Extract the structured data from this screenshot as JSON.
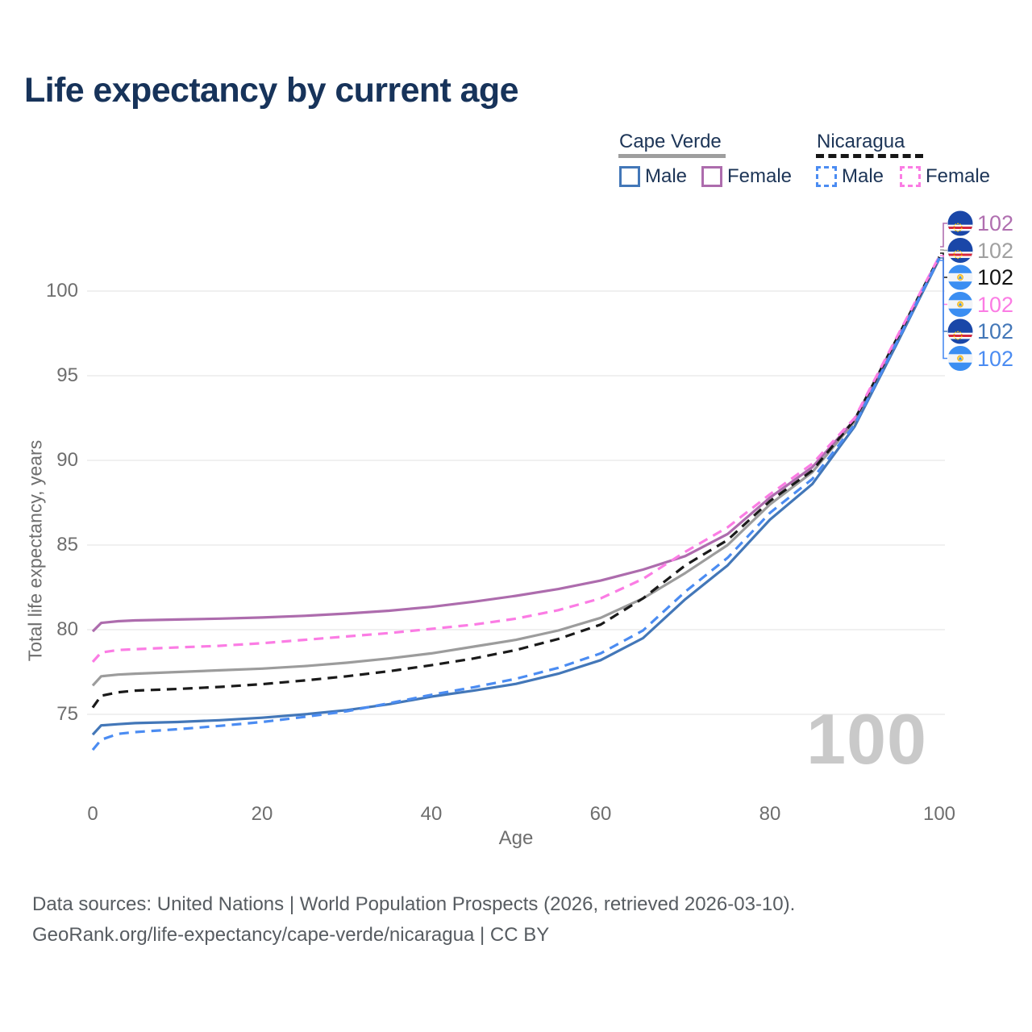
{
  "title": "Life expectancy by current age",
  "legend": {
    "groups": [
      {
        "name": "Cape Verde",
        "underline": "solid",
        "color": "#9e9e9e"
      },
      {
        "name": "Nicaragua",
        "underline": "dashed",
        "color": "#161616"
      }
    ],
    "items": [
      {
        "label": "Male",
        "color": "#4377b8",
        "dash": false
      },
      {
        "label": "Female",
        "color": "#ad6cad",
        "dash": false
      },
      {
        "label": "Male",
        "color": "#4b8cf2",
        "dash": true
      },
      {
        "label": "Female",
        "color": "#fb7ce4",
        "dash": true
      }
    ]
  },
  "watermark": "100",
  "footer": {
    "line1": "Data sources: United Nations | World Population Prospects (2026, retrieved 2026-03-10).",
    "line2": "GeoRank.org/life-expectancy/cape-verde/nicaragua | CC BY"
  },
  "chart_data": {
    "type": "line",
    "title": "Life expectancy by current age",
    "xlabel": "Age",
    "ylabel": "Total life expectancy, years",
    "xlim": [
      0,
      100
    ],
    "ylim": [
      72.5,
      103
    ],
    "xticks": [
      0,
      20,
      40,
      60,
      80,
      100
    ],
    "yticks": [
      75,
      80,
      85,
      90,
      95,
      100
    ],
    "grid": "horizontal-only",
    "legend_position": "top-right",
    "series": [
      {
        "name": "Cape Verde All",
        "country": "Cape Verde",
        "sex": "all",
        "color": "#9c9c9c",
        "dash": false,
        "points": [
          [
            0,
            76.7
          ],
          [
            1,
            77.25
          ],
          [
            3,
            77.35
          ],
          [
            5,
            77.4
          ],
          [
            10,
            77.5
          ],
          [
            15,
            77.6
          ],
          [
            20,
            77.7
          ],
          [
            25,
            77.85
          ],
          [
            30,
            78.05
          ],
          [
            35,
            78.3
          ],
          [
            40,
            78.6
          ],
          [
            45,
            79.0
          ],
          [
            50,
            79.4
          ],
          [
            55,
            79.95
          ],
          [
            60,
            80.7
          ],
          [
            65,
            81.85
          ],
          [
            70,
            83.35
          ],
          [
            75,
            85.0
          ],
          [
            80,
            87.4
          ],
          [
            85,
            89.3
          ],
          [
            90,
            92.3
          ],
          [
            95,
            97.1
          ],
          [
            100,
            101.98
          ]
        ]
      },
      {
        "name": "Cape Verde Male",
        "country": "Cape Verde",
        "sex": "male",
        "color": "#4377b8",
        "dash": false,
        "points": [
          [
            0,
            73.8
          ],
          [
            1,
            74.35
          ],
          [
            3,
            74.42
          ],
          [
            5,
            74.48
          ],
          [
            10,
            74.55
          ],
          [
            15,
            74.65
          ],
          [
            20,
            74.8
          ],
          [
            25,
            75.0
          ],
          [
            30,
            75.25
          ],
          [
            35,
            75.6
          ],
          [
            40,
            76.05
          ],
          [
            45,
            76.4
          ],
          [
            50,
            76.8
          ],
          [
            55,
            77.4
          ],
          [
            60,
            78.2
          ],
          [
            65,
            79.5
          ],
          [
            70,
            81.8
          ],
          [
            75,
            83.8
          ],
          [
            80,
            86.5
          ],
          [
            85,
            88.6
          ],
          [
            90,
            92.0
          ],
          [
            95,
            96.9
          ],
          [
            100,
            101.9
          ]
        ]
      },
      {
        "name": "Cape Verde Female",
        "country": "Cape Verde",
        "sex": "female",
        "color": "#ad6cad",
        "dash": false,
        "points": [
          [
            0,
            79.9
          ],
          [
            1,
            80.4
          ],
          [
            3,
            80.5
          ],
          [
            5,
            80.55
          ],
          [
            10,
            80.6
          ],
          [
            15,
            80.65
          ],
          [
            20,
            80.72
          ],
          [
            25,
            80.82
          ],
          [
            30,
            80.95
          ],
          [
            35,
            81.12
          ],
          [
            40,
            81.35
          ],
          [
            45,
            81.65
          ],
          [
            50,
            82.0
          ],
          [
            55,
            82.4
          ],
          [
            60,
            82.9
          ],
          [
            65,
            83.55
          ],
          [
            70,
            84.35
          ],
          [
            75,
            85.65
          ],
          [
            80,
            87.8
          ],
          [
            85,
            89.6
          ],
          [
            90,
            92.4
          ],
          [
            95,
            97.2
          ],
          [
            100,
            102.0
          ]
        ]
      },
      {
        "name": "Nicaragua All",
        "country": "Nicaragua",
        "sex": "all",
        "color": "#1a1a1a",
        "dash": true,
        "points": [
          [
            0,
            75.4
          ],
          [
            1,
            76.1
          ],
          [
            3,
            76.3
          ],
          [
            5,
            76.4
          ],
          [
            10,
            76.5
          ],
          [
            15,
            76.62
          ],
          [
            20,
            76.78
          ],
          [
            25,
            77.0
          ],
          [
            30,
            77.25
          ],
          [
            35,
            77.55
          ],
          [
            40,
            77.9
          ],
          [
            45,
            78.3
          ],
          [
            50,
            78.8
          ],
          [
            55,
            79.45
          ],
          [
            60,
            80.3
          ],
          [
            65,
            81.85
          ],
          [
            70,
            83.8
          ],
          [
            75,
            85.3
          ],
          [
            80,
            87.6
          ],
          [
            85,
            89.4
          ],
          [
            90,
            92.4
          ],
          [
            95,
            97.2
          ],
          [
            100,
            102.02
          ]
        ]
      },
      {
        "name": "Nicaragua Female",
        "country": "Nicaragua",
        "sex": "female",
        "color": "#fb7ce4",
        "dash": true,
        "points": [
          [
            0,
            78.1
          ],
          [
            1,
            78.65
          ],
          [
            3,
            78.8
          ],
          [
            5,
            78.85
          ],
          [
            10,
            78.95
          ],
          [
            15,
            79.05
          ],
          [
            20,
            79.2
          ],
          [
            25,
            79.4
          ],
          [
            30,
            79.6
          ],
          [
            35,
            79.8
          ],
          [
            40,
            80.05
          ],
          [
            45,
            80.3
          ],
          [
            50,
            80.65
          ],
          [
            55,
            81.15
          ],
          [
            60,
            81.85
          ],
          [
            65,
            83.0
          ],
          [
            70,
            84.6
          ],
          [
            75,
            86.05
          ],
          [
            80,
            88.0
          ],
          [
            85,
            89.8
          ],
          [
            90,
            92.5
          ],
          [
            95,
            97.3
          ],
          [
            100,
            102.05
          ]
        ]
      },
      {
        "name": "Nicaragua Male",
        "country": "Nicaragua",
        "sex": "male",
        "color": "#4b8cf2",
        "dash": true,
        "points": [
          [
            0,
            72.9
          ],
          [
            1,
            73.5
          ],
          [
            3,
            73.85
          ],
          [
            5,
            73.95
          ],
          [
            10,
            74.12
          ],
          [
            15,
            74.32
          ],
          [
            20,
            74.55
          ],
          [
            25,
            74.85
          ],
          [
            30,
            75.18
          ],
          [
            35,
            75.65
          ],
          [
            40,
            76.15
          ],
          [
            45,
            76.6
          ],
          [
            50,
            77.1
          ],
          [
            55,
            77.75
          ],
          [
            60,
            78.6
          ],
          [
            65,
            79.95
          ],
          [
            70,
            82.25
          ],
          [
            75,
            84.25
          ],
          [
            80,
            86.9
          ],
          [
            85,
            88.9
          ],
          [
            90,
            92.1
          ],
          [
            95,
            97.0
          ],
          [
            100,
            101.95
          ]
        ]
      }
    ],
    "end_labels": [
      {
        "flag_icon": "cape-verde-flag-icon",
        "value": "102",
        "color": "#b06fb0",
        "series": "Cape Verde Female"
      },
      {
        "flag_icon": "cape-verde-flag-icon",
        "value": "102",
        "color": "#a0a0a0",
        "series": "Cape Verde All"
      },
      {
        "flag_icon": "nicaragua-flag-icon",
        "value": "102",
        "color": "#141414",
        "series": "Nicaragua All"
      },
      {
        "flag_icon": "nicaragua-flag-icon",
        "value": "102",
        "color": "#fb7ce4",
        "series": "Nicaragua Female"
      },
      {
        "flag_icon": "cape-verde-flag-icon",
        "value": "102",
        "color": "#4377b8",
        "series": "Cape Verde Male"
      },
      {
        "flag_icon": "nicaragua-flag-icon",
        "value": "102",
        "color": "#4b8cf2",
        "series": "Nicaragua Male"
      }
    ]
  }
}
